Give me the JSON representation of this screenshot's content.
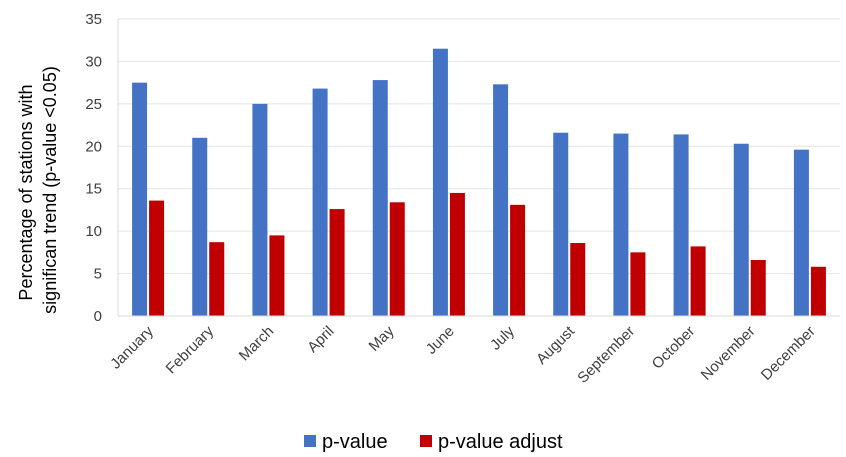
{
  "chart_data": {
    "type": "bar",
    "title": "",
    "xlabel": "",
    "ylabel_lines": [
      "Percentage of stations with",
      "significan trend (p-value <0.05)"
    ],
    "categories": [
      "January",
      "February",
      "March",
      "April",
      "May",
      "June",
      "July",
      "August",
      "September",
      "October",
      "November",
      "December"
    ],
    "series": [
      {
        "name": "p-value",
        "color": "#4472C4",
        "values": [
          27.5,
          21.0,
          25.0,
          26.8,
          27.8,
          31.5,
          27.3,
          21.6,
          21.5,
          21.4,
          20.3,
          19.6
        ]
      },
      {
        "name": "p-value adjust",
        "color": "#C00000",
        "values": [
          13.6,
          8.7,
          9.5,
          12.6,
          13.4,
          14.5,
          13.1,
          8.6,
          7.5,
          8.2,
          6.6,
          5.8
        ]
      }
    ],
    "ylim": [
      0,
      35
    ],
    "yticks": [
      "0",
      "5",
      "10",
      "15",
      "20",
      "25",
      "30",
      "35"
    ],
    "grid": true,
    "legend_position": "bottom"
  }
}
